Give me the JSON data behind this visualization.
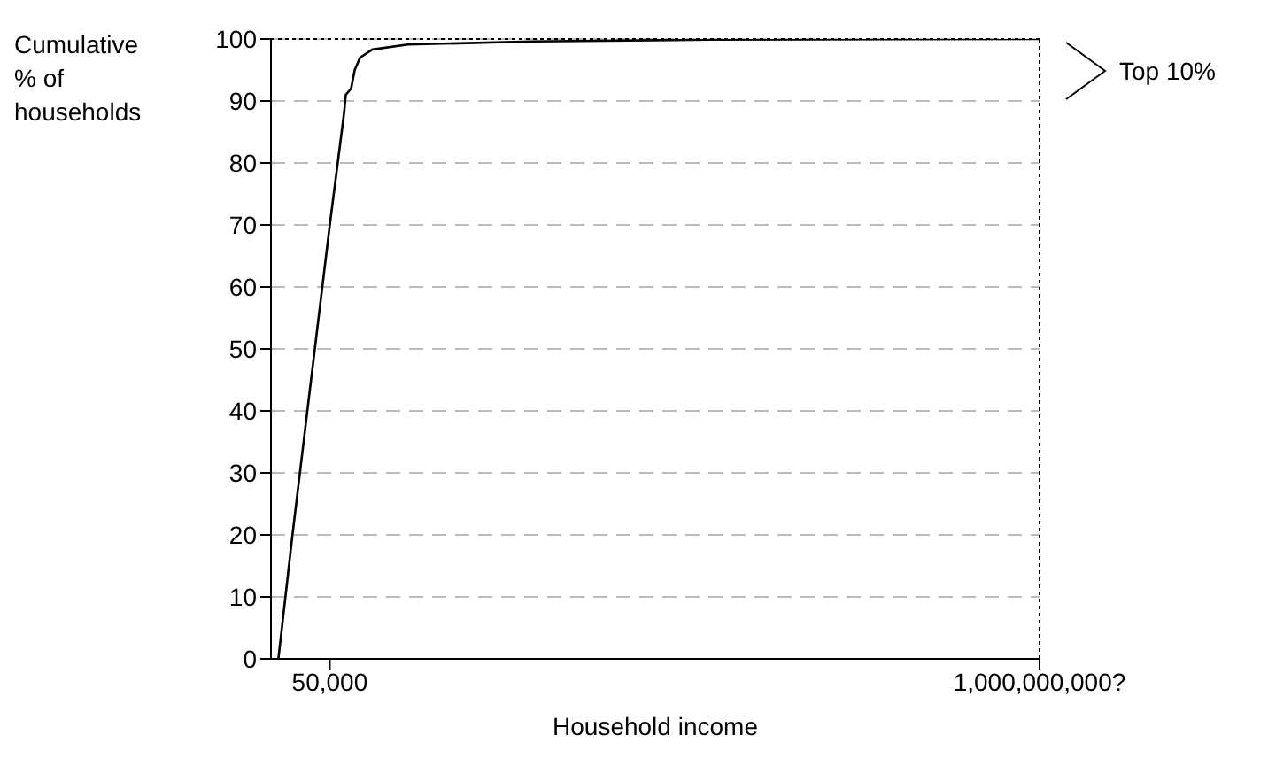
{
  "chart_data": {
    "type": "line",
    "xlabel": "Household income",
    "ylabel": "Cumulative % of households",
    "x": [
      24400,
      29700,
      38100,
      50000,
      61000,
      62500,
      67300,
      70800,
      76300,
      90600,
      148600,
      841000,
      10000000,
      1000000000
    ],
    "series": [
      {
        "color": "#000000",
        "values": [
          0,
          20,
          44,
          70,
          88,
          91,
          92,
          95,
          97,
          98.3,
          99.1,
          99.6,
          99.9,
          100
        ]
      }
    ],
    "log": "x",
    "xlim": [
      22000,
      1000000000
    ],
    "xticks": [
      {
        "value": 50000,
        "label": "50,000"
      },
      {
        "value": 1000000000,
        "label": "1,000,000,000?"
      }
    ],
    "ylim": [
      0,
      100
    ],
    "yticks": [
      0,
      10,
      20,
      30,
      40,
      50,
      60,
      70,
      80,
      90,
      100
    ],
    "grid": "y",
    "marker": "none",
    "line_style": "solid",
    "legend": false,
    "ref_lines": [
      {
        "axis": "y",
        "value": 100,
        "color": "#000000",
        "line_style": "dotted"
      },
      {
        "axis": "x",
        "value": 1000000000,
        "color": "#000000",
        "line_style": "dotted"
      }
    ],
    "annotations": [
      "Top 10%"
    ]
  }
}
